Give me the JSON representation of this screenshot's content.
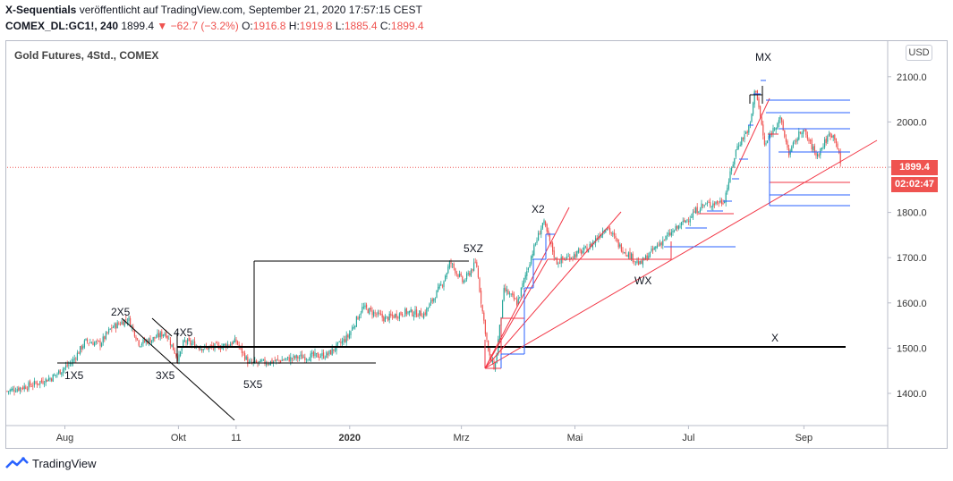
{
  "header": {
    "title_bold": "X-Sequentials",
    "title_rest": " veröffentlicht auf TradingView.com, September 21, 2020 17:57:15 CEST",
    "symbol": "COMEX_DL:GC1!, 240",
    "last": "1899.4",
    "change_arrow": "▼",
    "change": "−62.7 (−3.2%)",
    "o_label": "O:",
    "o_value": "1916.8",
    "h_label": "H:",
    "h_value": "1919.8",
    "l_label": "L:",
    "l_value": "1885.4",
    "c_label": "C:",
    "c_value": "1899.4"
  },
  "chart_title": "Gold Futures, 4Std., COMEX",
  "currency_button": "USD",
  "price_tag": "1899.4",
  "timer_tag": "02:02:47",
  "footer_brand": "TradingView",
  "colors": {
    "up": "#26a69a",
    "down": "#ef5350",
    "price_line": "#ef5350",
    "trend_red": "#f23645",
    "trend_blue": "#2962ff",
    "annotation_black": "#000000"
  },
  "chart_data": {
    "type": "candlestick",
    "title": "Gold Futures, 4Std., COMEX",
    "yaxis_ticks": [
      "1400.0",
      "1500.0",
      "1600.0",
      "1700.0",
      "1800.0",
      "1900.0",
      "2000.0",
      "2100.0"
    ],
    "ylim": [
      1330,
      2180
    ],
    "xaxis_ticks": [
      "Aug",
      "Okt",
      "11",
      "2020",
      "Mrz",
      "Mai",
      "Jul",
      "Sep"
    ],
    "xaxis_bold": [
      "2020"
    ],
    "last_price": 1899.4,
    "annotations": [
      "1X5",
      "2X5",
      "3X5",
      "4X5",
      "5X5",
      "5XZ",
      "X2",
      "WX",
      "MX",
      "X"
    ],
    "price_path": [
      [
        "2019-07-01",
        1405
      ],
      [
        "2019-07-15",
        1420
      ],
      [
        "2019-07-25",
        1435
      ],
      [
        "2019-08-05",
        1470
      ],
      [
        "2019-08-12",
        1515
      ],
      [
        "2019-08-20",
        1510
      ],
      [
        "2019-08-26",
        1545
      ],
      [
        "2019-09-04",
        1565
      ],
      [
        "2019-09-10",
        1510
      ],
      [
        "2019-09-17",
        1520
      ],
      [
        "2019-09-24",
        1535
      ],
      [
        "2019-10-01",
        1475
      ],
      [
        "2019-10-04",
        1515
      ],
      [
        "2019-10-15",
        1500
      ],
      [
        "2019-10-25",
        1505
      ],
      [
        "2019-11-01",
        1515
      ],
      [
        "2019-11-08",
        1465
      ],
      [
        "2019-11-20",
        1470
      ],
      [
        "2019-12-05",
        1480
      ],
      [
        "2019-12-20",
        1485
      ],
      [
        "2019-12-31",
        1525
      ],
      [
        "2020-01-08",
        1590
      ],
      [
        "2020-01-20",
        1565
      ],
      [
        "2020-01-31",
        1580
      ],
      [
        "2020-02-10",
        1575
      ],
      [
        "2020-02-20",
        1645
      ],
      [
        "2020-02-24",
        1690
      ],
      [
        "2020-03-02",
        1645
      ],
      [
        "2020-03-09",
        1690
      ],
      [
        "2020-03-12",
        1590
      ],
      [
        "2020-03-16",
        1480
      ],
      [
        "2020-03-19",
        1455
      ],
      [
        "2020-03-24",
        1630
      ],
      [
        "2020-03-31",
        1600
      ],
      [
        "2020-04-08",
        1710
      ],
      [
        "2020-04-14",
        1780
      ],
      [
        "2020-04-21",
        1690
      ],
      [
        "2020-04-30",
        1705
      ],
      [
        "2020-05-08",
        1720
      ],
      [
        "2020-05-18",
        1770
      ],
      [
        "2020-05-25",
        1725
      ],
      [
        "2020-06-05",
        1685
      ],
      [
        "2020-06-15",
        1730
      ],
      [
        "2020-06-29",
        1780
      ],
      [
        "2020-07-08",
        1815
      ],
      [
        "2020-07-20",
        1825
      ],
      [
        "2020-07-27",
        1945
      ],
      [
        "2020-08-03",
        1990
      ],
      [
        "2020-08-06",
        2080
      ],
      [
        "2020-08-11",
        1945
      ],
      [
        "2020-08-13",
        1965
      ],
      [
        "2020-08-19",
        2010
      ],
      [
        "2020-08-24",
        1930
      ],
      [
        "2020-08-31",
        1985
      ],
      [
        "2020-09-08",
        1925
      ],
      [
        "2020-09-15",
        1975
      ],
      [
        "2020-09-18",
        1965
      ],
      [
        "2020-09-21",
        1899.4
      ]
    ]
  }
}
